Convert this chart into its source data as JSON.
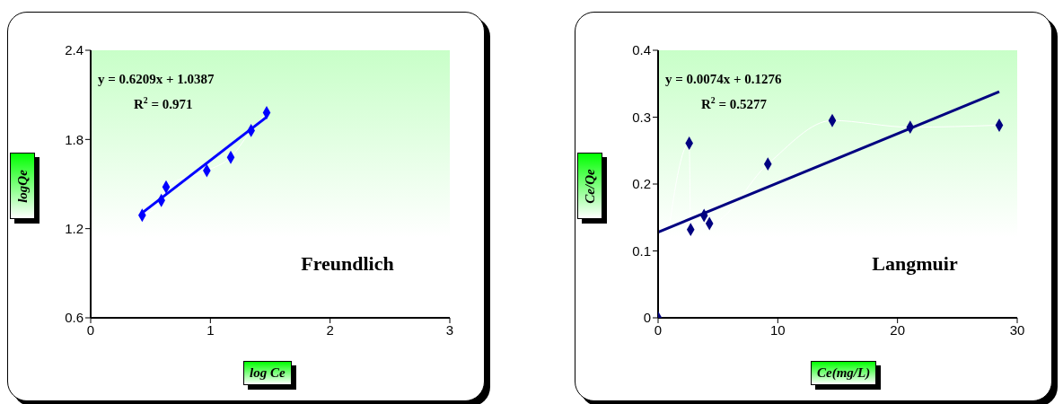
{
  "chart_data": [
    {
      "type": "scatter",
      "title": "Freundlich",
      "xlabel": "log Ce",
      "ylabel": "logQe",
      "annotations": [
        "y = 0.6209x + 1.0387",
        "R$^{2}$ = 0.971"
      ],
      "xlim": [
        0,
        3
      ],
      "xticks": [
        0,
        1,
        2,
        3
      ],
      "ylim": [
        0.6,
        2.4
      ],
      "yticks": [
        0.6,
        1.2,
        1.8,
        2.4
      ],
      "grid": false,
      "marker": "diamond",
      "series": [
        {
          "type": "line",
          "color": "#ffffff",
          "marker": "none",
          "x": [
            0.43,
            0.59,
            0.63,
            0.97,
            1.17,
            1.34,
            1.47
          ],
          "values": [
            1.29,
            1.39,
            1.48,
            1.59,
            1.68,
            1.86,
            1.98
          ]
        },
        {
          "type": "scatter",
          "color": "#0000ff",
          "x": [
            0.43,
            0.59,
            0.63,
            0.97,
            1.17,
            1.34,
            1.47
          ],
          "values": [
            1.29,
            1.39,
            1.48,
            1.59,
            1.68,
            1.86,
            1.98
          ]
        },
        {
          "type": "line",
          "color": "#0000ff",
          "marker": "none",
          "x": [
            0.43,
            1.47
          ],
          "values": [
            1.306,
            1.951
          ]
        }
      ]
    },
    {
      "type": "scatter",
      "title": "Langmuir",
      "xlabel": "Ce(mg/L)",
      "ylabel": "Ce/Qe",
      "annotations": [
        "y = 0.0074x + 0.1276",
        "R$^{2}$ = 0.5277"
      ],
      "xlim": [
        0,
        30
      ],
      "xticks": [
        0,
        10,
        20,
        30
      ],
      "ylim": [
        0,
        0.4
      ],
      "yticks": [
        0,
        0.1,
        0.2,
        0.3,
        0.4
      ],
      "grid": false,
      "marker": "diamond",
      "series": [
        {
          "type": "line",
          "color": "#ffffff",
          "marker": "none",
          "x": [
            0,
            2.6,
            2.72,
            3.84,
            4.29,
            9.17,
            14.55,
            21.06,
            28.5
          ],
          "values": [
            0,
            0.261,
            0.132,
            0.153,
            0.141,
            0.23,
            0.295,
            0.285,
            0.288
          ]
        },
        {
          "type": "scatter",
          "color": "#000080",
          "x": [
            0,
            2.6,
            2.72,
            3.84,
            4.29,
            9.17,
            14.55,
            21.06,
            28.5
          ],
          "values": [
            0,
            0.261,
            0.132,
            0.153,
            0.141,
            0.23,
            0.295,
            0.285,
            0.288
          ]
        },
        {
          "type": "line",
          "color": "#000080",
          "marker": "none",
          "x": [
            0,
            28.5
          ],
          "values": [
            0.128,
            0.338
          ]
        }
      ]
    }
  ]
}
